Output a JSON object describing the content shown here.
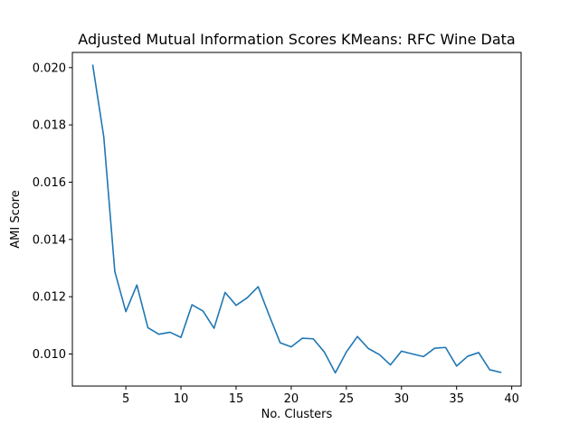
{
  "chart_data": {
    "type": "line",
    "title": "Adjusted Mutual Information Scores KMeans: RFC Wine Data",
    "xlabel": "No. Clusters",
    "ylabel": "AMI Score",
    "xlim": [
      0.15,
      40.85
    ],
    "ylim": [
      0.00888,
      0.02053
    ],
    "xticks": [
      5,
      10,
      15,
      20,
      25,
      30,
      35,
      40
    ],
    "xtick_labels": [
      "5",
      "10",
      "15",
      "20",
      "25",
      "30",
      "35",
      "40"
    ],
    "yticks": [
      0.01,
      0.012,
      0.014,
      0.016,
      0.018,
      0.02
    ],
    "ytick_labels": [
      "0.010",
      "0.012",
      "0.014",
      "0.016",
      "0.018",
      "0.020"
    ],
    "grid": false,
    "legend": "none",
    "series": [
      {
        "color": "#1f77b4",
        "x": [
          2,
          3,
          4,
          5,
          6,
          7,
          8,
          9,
          10,
          11,
          12,
          13,
          14,
          15,
          16,
          17,
          18,
          19,
          20,
          21,
          22,
          23,
          24,
          25,
          26,
          27,
          28,
          29,
          30,
          31,
          32,
          33,
          34,
          35,
          36,
          37,
          38,
          39
        ],
        "y": [
          0.02008,
          0.01758,
          0.01288,
          0.01148,
          0.01241,
          0.01092,
          0.01069,
          0.01076,
          0.01058,
          0.01172,
          0.0115,
          0.0109,
          0.01215,
          0.0117,
          0.01196,
          0.01235,
          0.01135,
          0.01039,
          0.01025,
          0.01055,
          0.01053,
          0.01007,
          0.00934,
          0.01007,
          0.01061,
          0.01019,
          0.00998,
          0.00962,
          0.0101,
          0.01,
          0.00991,
          0.0102,
          0.01023,
          0.00958,
          0.00992,
          0.01005,
          0.00945,
          0.00936
        ]
      }
    ]
  }
}
